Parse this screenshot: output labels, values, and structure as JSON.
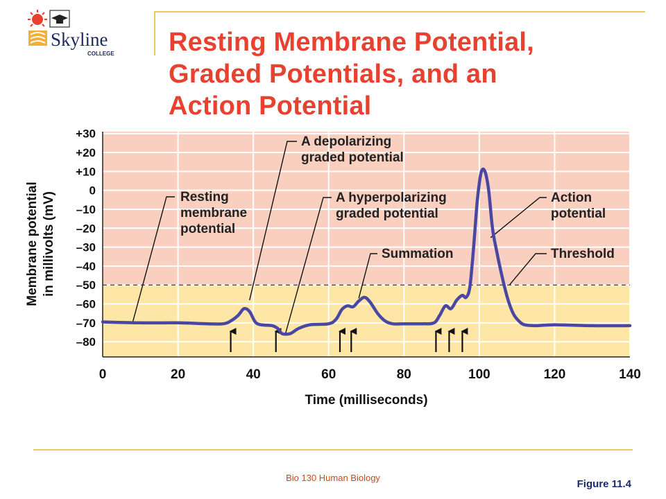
{
  "slide": {
    "title": "Resting Membrane Potential,\nGraded Potentials, and an\nAction Potential",
    "logo_name": "Skyline",
    "logo_sub": "COLLEGE",
    "footer": "Bio 130 Human Biology",
    "figure_label": "Figure 11.4"
  },
  "colors": {
    "title": "#e8412f",
    "above_threshold_band": "#f9cfc0",
    "below_threshold_band": "#fde6a6",
    "trace": "#4a47a3",
    "rule": "#e8c766"
  },
  "chart_data": {
    "type": "line",
    "xlabel": "Time (milliseconds)",
    "ylabel_line1": "Membrane potential",
    "ylabel_line2": "in millivolts (mV)",
    "xlim": [
      0,
      140
    ],
    "ylim": [
      -88,
      31
    ],
    "x_ticks": [
      0,
      20,
      40,
      60,
      80,
      100,
      120,
      140
    ],
    "x_tick_labels": [
      "0",
      "20",
      "40",
      "60",
      "80",
      "100",
      "120",
      "140"
    ],
    "y_ticks": [
      30,
      20,
      10,
      0,
      -10,
      -20,
      -30,
      -40,
      -50,
      -60,
      -70,
      -80
    ],
    "y_tick_labels": [
      "+30",
      "+20",
      "+10",
      "0",
      "–10",
      "–20",
      "–30",
      "–40",
      "–50",
      "–60",
      "–70",
      "–80"
    ],
    "grid": true,
    "threshold": -50,
    "series": [
      {
        "x": [
          0,
          10,
          20,
          28,
          32,
          34,
          36,
          37.5,
          39,
          40.5,
          42,
          45,
          46.5,
          47.5,
          48.5,
          50,
          52,
          55,
          60,
          62,
          63.5,
          65,
          66.5,
          68,
          69.5,
          71,
          73,
          75,
          77,
          80,
          85,
          88,
          89.5,
          91,
          92.5,
          94,
          95.5,
          96.5,
          97.5,
          98.5,
          99.5,
          100.5,
          101.5,
          102.5,
          103.5,
          104.5,
          106,
          107.5,
          109,
          110.5,
          112,
          115,
          120,
          130,
          140
        ],
        "y": [
          -69.5,
          -70,
          -70,
          -70.5,
          -70.5,
          -69,
          -66,
          -62.5,
          -64,
          -69.5,
          -71,
          -71.5,
          -73,
          -75.5,
          -76,
          -75.5,
          -73,
          -71,
          -70.5,
          -68,
          -63,
          -61,
          -61.5,
          -58.5,
          -56.5,
          -59,
          -65,
          -69,
          -70.5,
          -70.5,
          -70.5,
          -70,
          -66,
          -61,
          -62.5,
          -58,
          -55.5,
          -56.5,
          -51,
          -30,
          -5,
          9.5,
          10,
          0,
          -20,
          -31,
          -45,
          -57,
          -65,
          -69,
          -71,
          -71.5,
          -71,
          -71.5,
          -71.5
        ]
      }
    ],
    "stimulus_arrows_ms": [
      34,
      46,
      63,
      66,
      88.5,
      92,
      95.5
    ],
    "annotations": [
      {
        "text": "Resting\nmembrane\npotential",
        "points_to_ms": 8,
        "points_to_mv": -69.5
      },
      {
        "text": "A depolarizing\ngraded potential",
        "points_to_ms": 39,
        "points_to_mv": -58
      },
      {
        "text": "A hyperpolarizing\ngraded potential",
        "points_to_ms": 48.5,
        "points_to_mv": -76
      },
      {
        "text": "Summation",
        "points_to_ms": 68,
        "points_to_mv": -57
      },
      {
        "text": "Action\npotential",
        "points_to_ms": 103,
        "points_to_mv": -25
      },
      {
        "text": "Threshold",
        "points_to_ms": 108,
        "points_to_mv": -50
      }
    ]
  }
}
